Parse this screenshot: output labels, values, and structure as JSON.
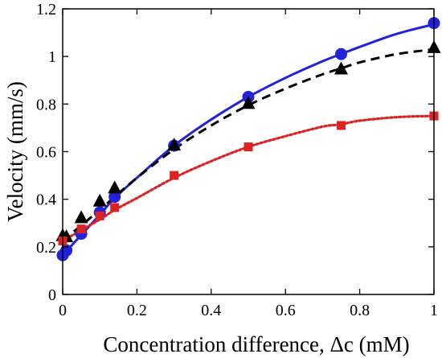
{
  "chart_data": {
    "type": "scatter",
    "title": "",
    "xlabel": "Concentration difference, Δc (mM)",
    "ylabel": "Velocity (mm/s)",
    "xlim": [
      0,
      1
    ],
    "ylim": [
      0,
      1.2
    ],
    "x_ticks": [
      0,
      0.2,
      0.4,
      0.6,
      0.8,
      1
    ],
    "x_tick_labels": [
      "0",
      "0.2",
      "0.4",
      "0.6",
      "0.8",
      "1"
    ],
    "y_ticks": [
      0,
      0.2,
      0.4,
      0.6,
      0.8,
      1,
      1.2
    ],
    "y_tick_labels": [
      "0",
      "0.2",
      "0.4",
      "0.6",
      "0.8",
      "1",
      "1.2"
    ],
    "grid": false,
    "legend": "none",
    "series": [
      {
        "marker": "circle",
        "color": "#2222dd",
        "line_style": "solid",
        "points": [
          [
            0,
            0.165
          ],
          [
            0.01,
            0.185
          ],
          [
            0.05,
            0.255
          ],
          [
            0.1,
            0.345
          ],
          [
            0.14,
            0.41
          ],
          [
            0.3,
            0.625
          ],
          [
            0.5,
            0.83
          ],
          [
            0.75,
            1.01
          ],
          [
            1.0,
            1.14
          ]
        ],
        "fit": [
          [
            0,
            0.165
          ],
          [
            0.05,
            0.25
          ],
          [
            0.1,
            0.335
          ],
          [
            0.14,
            0.405
          ],
          [
            0.2,
            0.49
          ],
          [
            0.3,
            0.625
          ],
          [
            0.4,
            0.735
          ],
          [
            0.5,
            0.83
          ],
          [
            0.6,
            0.91
          ],
          [
            0.7,
            0.98
          ],
          [
            0.75,
            1.01
          ],
          [
            0.8,
            1.04
          ],
          [
            0.9,
            1.095
          ],
          [
            1.0,
            1.135
          ]
        ]
      },
      {
        "marker": "triangle",
        "color": "#000000",
        "line_style": "dashed",
        "points": [
          [
            0,
            0.245
          ],
          [
            0.01,
            0.24
          ],
          [
            0.05,
            0.32
          ],
          [
            0.1,
            0.39
          ],
          [
            0.14,
            0.445
          ],
          [
            0.3,
            0.625
          ],
          [
            0.5,
            0.8
          ],
          [
            0.75,
            0.945
          ],
          [
            1.0,
            1.035
          ]
        ],
        "fit": [
          [
            0,
            0.225
          ],
          [
            0.05,
            0.29
          ],
          [
            0.1,
            0.355
          ],
          [
            0.14,
            0.41
          ],
          [
            0.2,
            0.49
          ],
          [
            0.3,
            0.61
          ],
          [
            0.4,
            0.71
          ],
          [
            0.5,
            0.795
          ],
          [
            0.6,
            0.865
          ],
          [
            0.7,
            0.925
          ],
          [
            0.75,
            0.95
          ],
          [
            0.8,
            0.975
          ],
          [
            0.9,
            1.01
          ],
          [
            1.0,
            1.03
          ]
        ]
      },
      {
        "marker": "square",
        "color": "#dd2222",
        "line_style": "dotted",
        "points": [
          [
            0,
            0.225
          ],
          [
            0.05,
            0.275
          ],
          [
            0.1,
            0.33
          ],
          [
            0.14,
            0.365
          ],
          [
            0.3,
            0.5
          ],
          [
            0.5,
            0.62
          ],
          [
            0.75,
            0.71
          ],
          [
            1.0,
            0.75
          ]
        ],
        "fit": [
          [
            0,
            0.225
          ],
          [
            0.05,
            0.27
          ],
          [
            0.1,
            0.315
          ],
          [
            0.14,
            0.355
          ],
          [
            0.2,
            0.405
          ],
          [
            0.3,
            0.49
          ],
          [
            0.4,
            0.56
          ],
          [
            0.5,
            0.62
          ],
          [
            0.6,
            0.665
          ],
          [
            0.7,
            0.705
          ],
          [
            0.75,
            0.715
          ],
          [
            0.8,
            0.73
          ],
          [
            0.9,
            0.745
          ],
          [
            1.0,
            0.75
          ]
        ]
      }
    ]
  }
}
